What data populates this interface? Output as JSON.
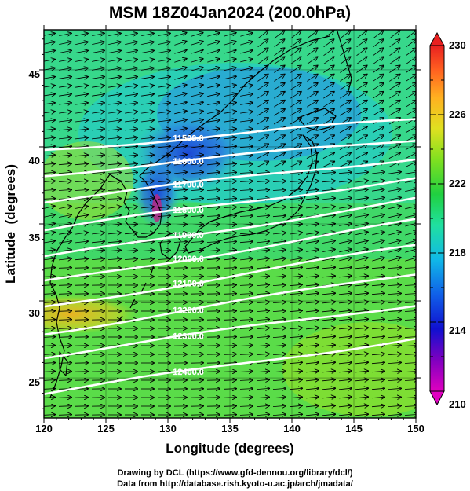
{
  "title": "MSM 18Z04Jan2024 (200.0hPa)",
  "chart_data": {
    "type": "heatmap",
    "xlabel": "Longitude (degrees)",
    "ylabel": "Latitude  (degrees)",
    "xlim": [
      120,
      150
    ],
    "ylim": [
      22.4,
      47.6
    ],
    "xticks": [
      "120",
      "125",
      "130",
      "135",
      "140",
      "145",
      "150"
    ],
    "yticks": [
      "25",
      "30",
      "35",
      "40",
      "45"
    ],
    "colorbar": {
      "min": 210,
      "max": 230,
      "ticks": [
        "230",
        "226",
        "222",
        "218",
        "214",
        "210"
      ],
      "colors": [
        "#e000c0",
        "#8000c0",
        "#1010d0",
        "#1060e8",
        "#10b8e8",
        "#20e0a0",
        "#20d040",
        "#80e020",
        "#e0e020",
        "#ffb020",
        "#ff6020",
        "#e82020"
      ]
    },
    "contours": [
      {
        "label": "11500.0",
        "lat_west": 39.8,
        "lat_east": 41.8
      },
      {
        "label": "11600.0",
        "lat_west": 38.2,
        "lat_east": 40.5
      },
      {
        "label": "11700.0",
        "lat_west": 36.5,
        "lat_east": 39.3
      },
      {
        "label": "11800.0",
        "lat_west": 34.6,
        "lat_east": 38.0
      },
      {
        "label": "11900.0",
        "lat_west": 32.8,
        "lat_east": 36.6
      },
      {
        "label": "12000.0",
        "lat_west": 31.2,
        "lat_east": 35.2
      },
      {
        "label": "12100.0",
        "lat_west": 29.6,
        "lat_east": 33.6
      },
      {
        "label": "12200.0",
        "lat_west": 27.9,
        "lat_east": 31.8
      },
      {
        "label": "12300.0",
        "lat_west": 26.4,
        "lat_east": 29.8
      },
      {
        "label": "12400.0",
        "lat_west": 24.0,
        "lat_east": 27.6
      }
    ]
  },
  "footer": {
    "line1": "Drawing by DCL (https://www.gfd-dennou.org/library/dcl/)",
    "line2": "Data from http://database.rish.kyoto-u.ac.jp/arch/jmadata/"
  }
}
